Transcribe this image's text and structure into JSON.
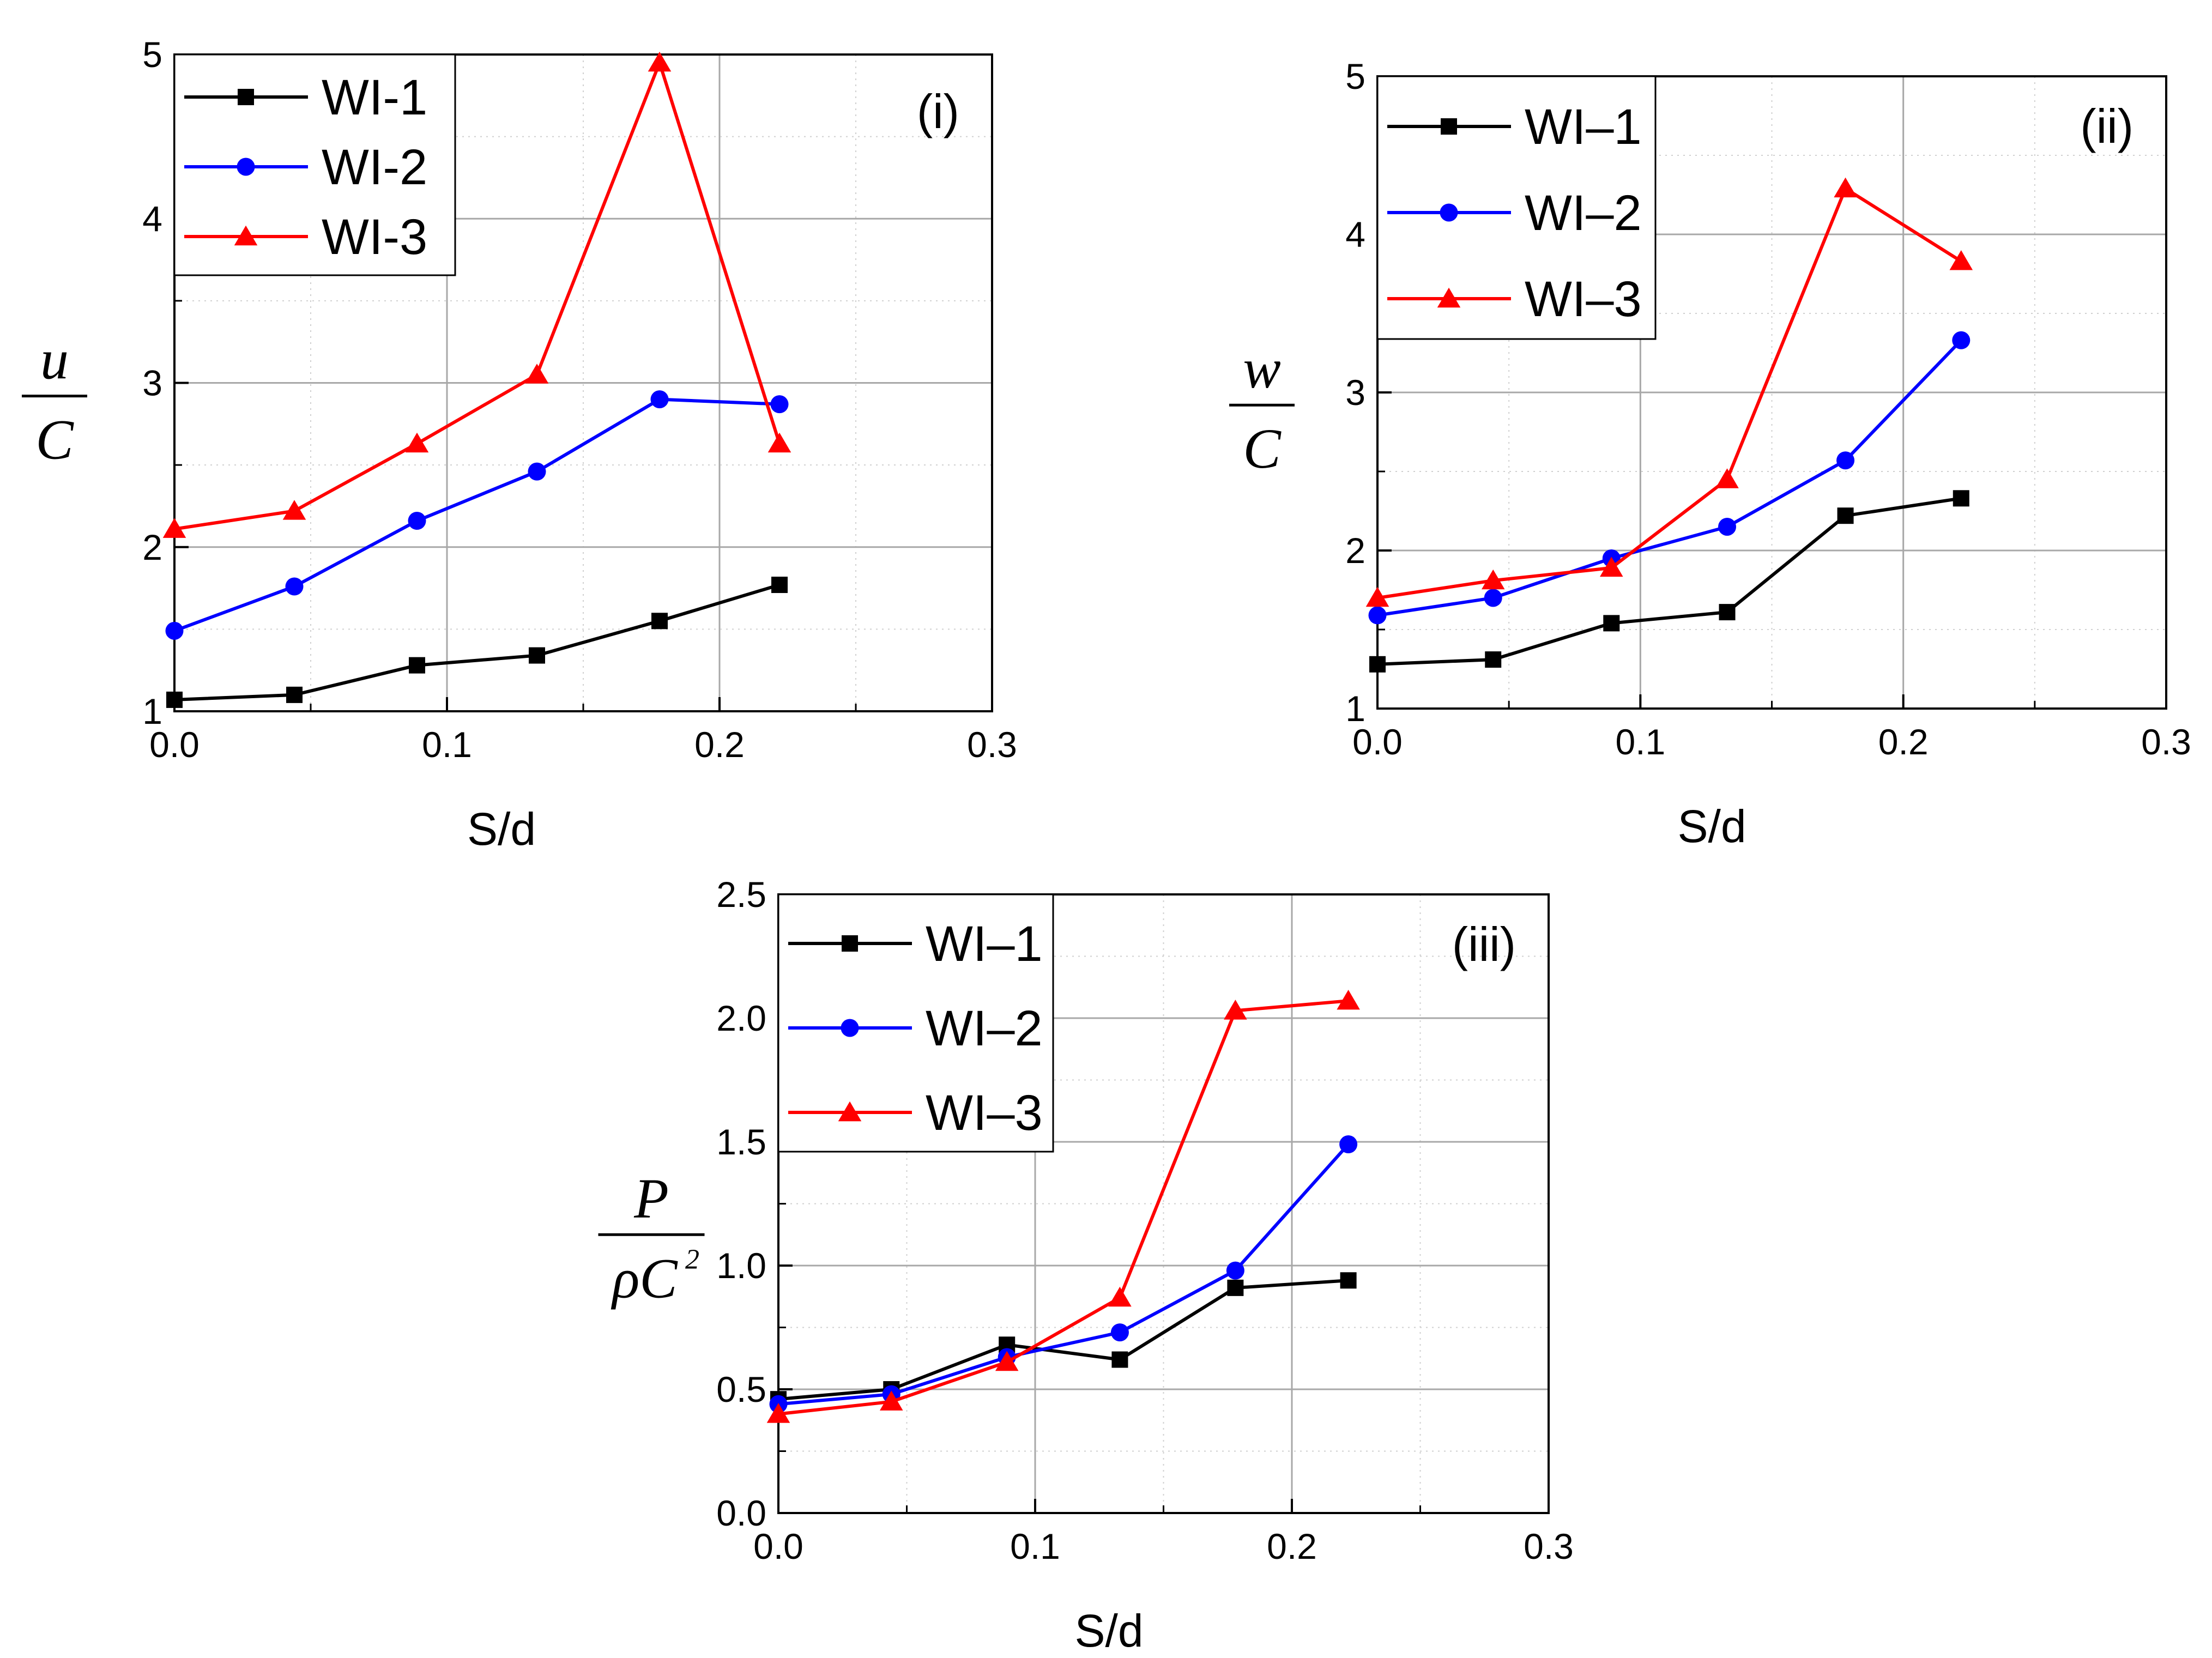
{
  "chart_data": [
    {
      "id": "chart-i",
      "type": "line",
      "panel_label": "(i)",
      "xlabel": "S/d",
      "ylabel": {
        "numerator": "u",
        "denominator": "C"
      },
      "xlim": [
        0.0,
        0.3
      ],
      "ylim": [
        1,
        5
      ],
      "xticks": [
        "0.0",
        "0.1",
        "0.2",
        "0.3"
      ],
      "xtick_values": [
        0.0,
        0.1,
        0.2,
        0.3
      ],
      "yticks": [
        "1",
        "2",
        "3",
        "4",
        "5"
      ],
      "ytick_values": [
        1,
        2,
        3,
        4,
        5
      ],
      "grid": true,
      "legend_position": "top-left",
      "x": [
        0.0,
        0.044,
        0.089,
        0.133,
        0.178,
        0.222
      ],
      "series": [
        {
          "name": "WI-1",
          "color": "#000000",
          "marker": "square",
          "values": [
            1.07,
            1.1,
            1.28,
            1.34,
            1.55,
            1.77
          ]
        },
        {
          "name": "WI-2",
          "color": "#0000ff",
          "marker": "circle",
          "values": [
            1.49,
            1.76,
            2.16,
            2.46,
            2.9,
            2.87
          ]
        },
        {
          "name": "WI-3",
          "color": "#ff0000",
          "marker": "triangle",
          "values": [
            2.11,
            2.22,
            2.63,
            3.05,
            4.95,
            2.63
          ]
        }
      ]
    },
    {
      "id": "chart-ii",
      "type": "line",
      "panel_label": "(ii)",
      "xlabel": "S/d",
      "ylabel": {
        "numerator": "w",
        "denominator": "C"
      },
      "xlim": [
        0.0,
        0.3
      ],
      "ylim": [
        1,
        5
      ],
      "xticks": [
        "0.0",
        "0.1",
        "0.2",
        "0.3"
      ],
      "xtick_values": [
        0.0,
        0.1,
        0.2,
        0.3
      ],
      "yticks": [
        "1",
        "2",
        "3",
        "4",
        "5"
      ],
      "ytick_values": [
        1,
        2,
        3,
        4,
        5
      ],
      "grid": true,
      "legend_position": "top-left",
      "x": [
        0.0,
        0.044,
        0.089,
        0.133,
        0.178,
        0.222
      ],
      "series": [
        {
          "name": "WI–1",
          "color": "#000000",
          "marker": "square",
          "values": [
            1.28,
            1.31,
            1.54,
            1.61,
            2.22,
            2.33
          ]
        },
        {
          "name": "WI–2",
          "color": "#0000ff",
          "marker": "circle",
          "values": [
            1.59,
            1.7,
            1.95,
            2.15,
            2.57,
            3.33
          ]
        },
        {
          "name": "WI–3",
          "color": "#ff0000",
          "marker": "triangle",
          "values": [
            1.7,
            1.81,
            1.89,
            2.45,
            4.29,
            3.83
          ]
        }
      ]
    },
    {
      "id": "chart-iii",
      "type": "line",
      "panel_label": "(iii)",
      "xlabel": "S/d",
      "ylabel": {
        "numerator": "P",
        "denominator": "ρC",
        "superscript": "2"
      },
      "xlim": [
        0.0,
        0.3
      ],
      "ylim": [
        0.0,
        2.5
      ],
      "xticks": [
        "0.0",
        "0.1",
        "0.2",
        "0.3"
      ],
      "xtick_values": [
        0.0,
        0.1,
        0.2,
        0.3
      ],
      "yticks": [
        "0.0",
        "0.5",
        "1.0",
        "1.5",
        "2.0",
        "2.5"
      ],
      "ytick_values": [
        0.0,
        0.5,
        1.0,
        1.5,
        2.0,
        2.5
      ],
      "grid": true,
      "legend_position": "top-left",
      "x": [
        0.0,
        0.044,
        0.089,
        0.133,
        0.178,
        0.222
      ],
      "series": [
        {
          "name": "WI–1",
          "color": "#000000",
          "marker": "square",
          "values": [
            0.46,
            0.5,
            0.68,
            0.62,
            0.91,
            0.94
          ]
        },
        {
          "name": "WI–2",
          "color": "#0000ff",
          "marker": "circle",
          "values": [
            0.44,
            0.48,
            0.63,
            0.73,
            0.98,
            1.49
          ]
        },
        {
          "name": "WI–3",
          "color": "#ff0000",
          "marker": "triangle",
          "values": [
            0.4,
            0.45,
            0.61,
            0.87,
            2.03,
            2.07
          ]
        }
      ]
    }
  ]
}
